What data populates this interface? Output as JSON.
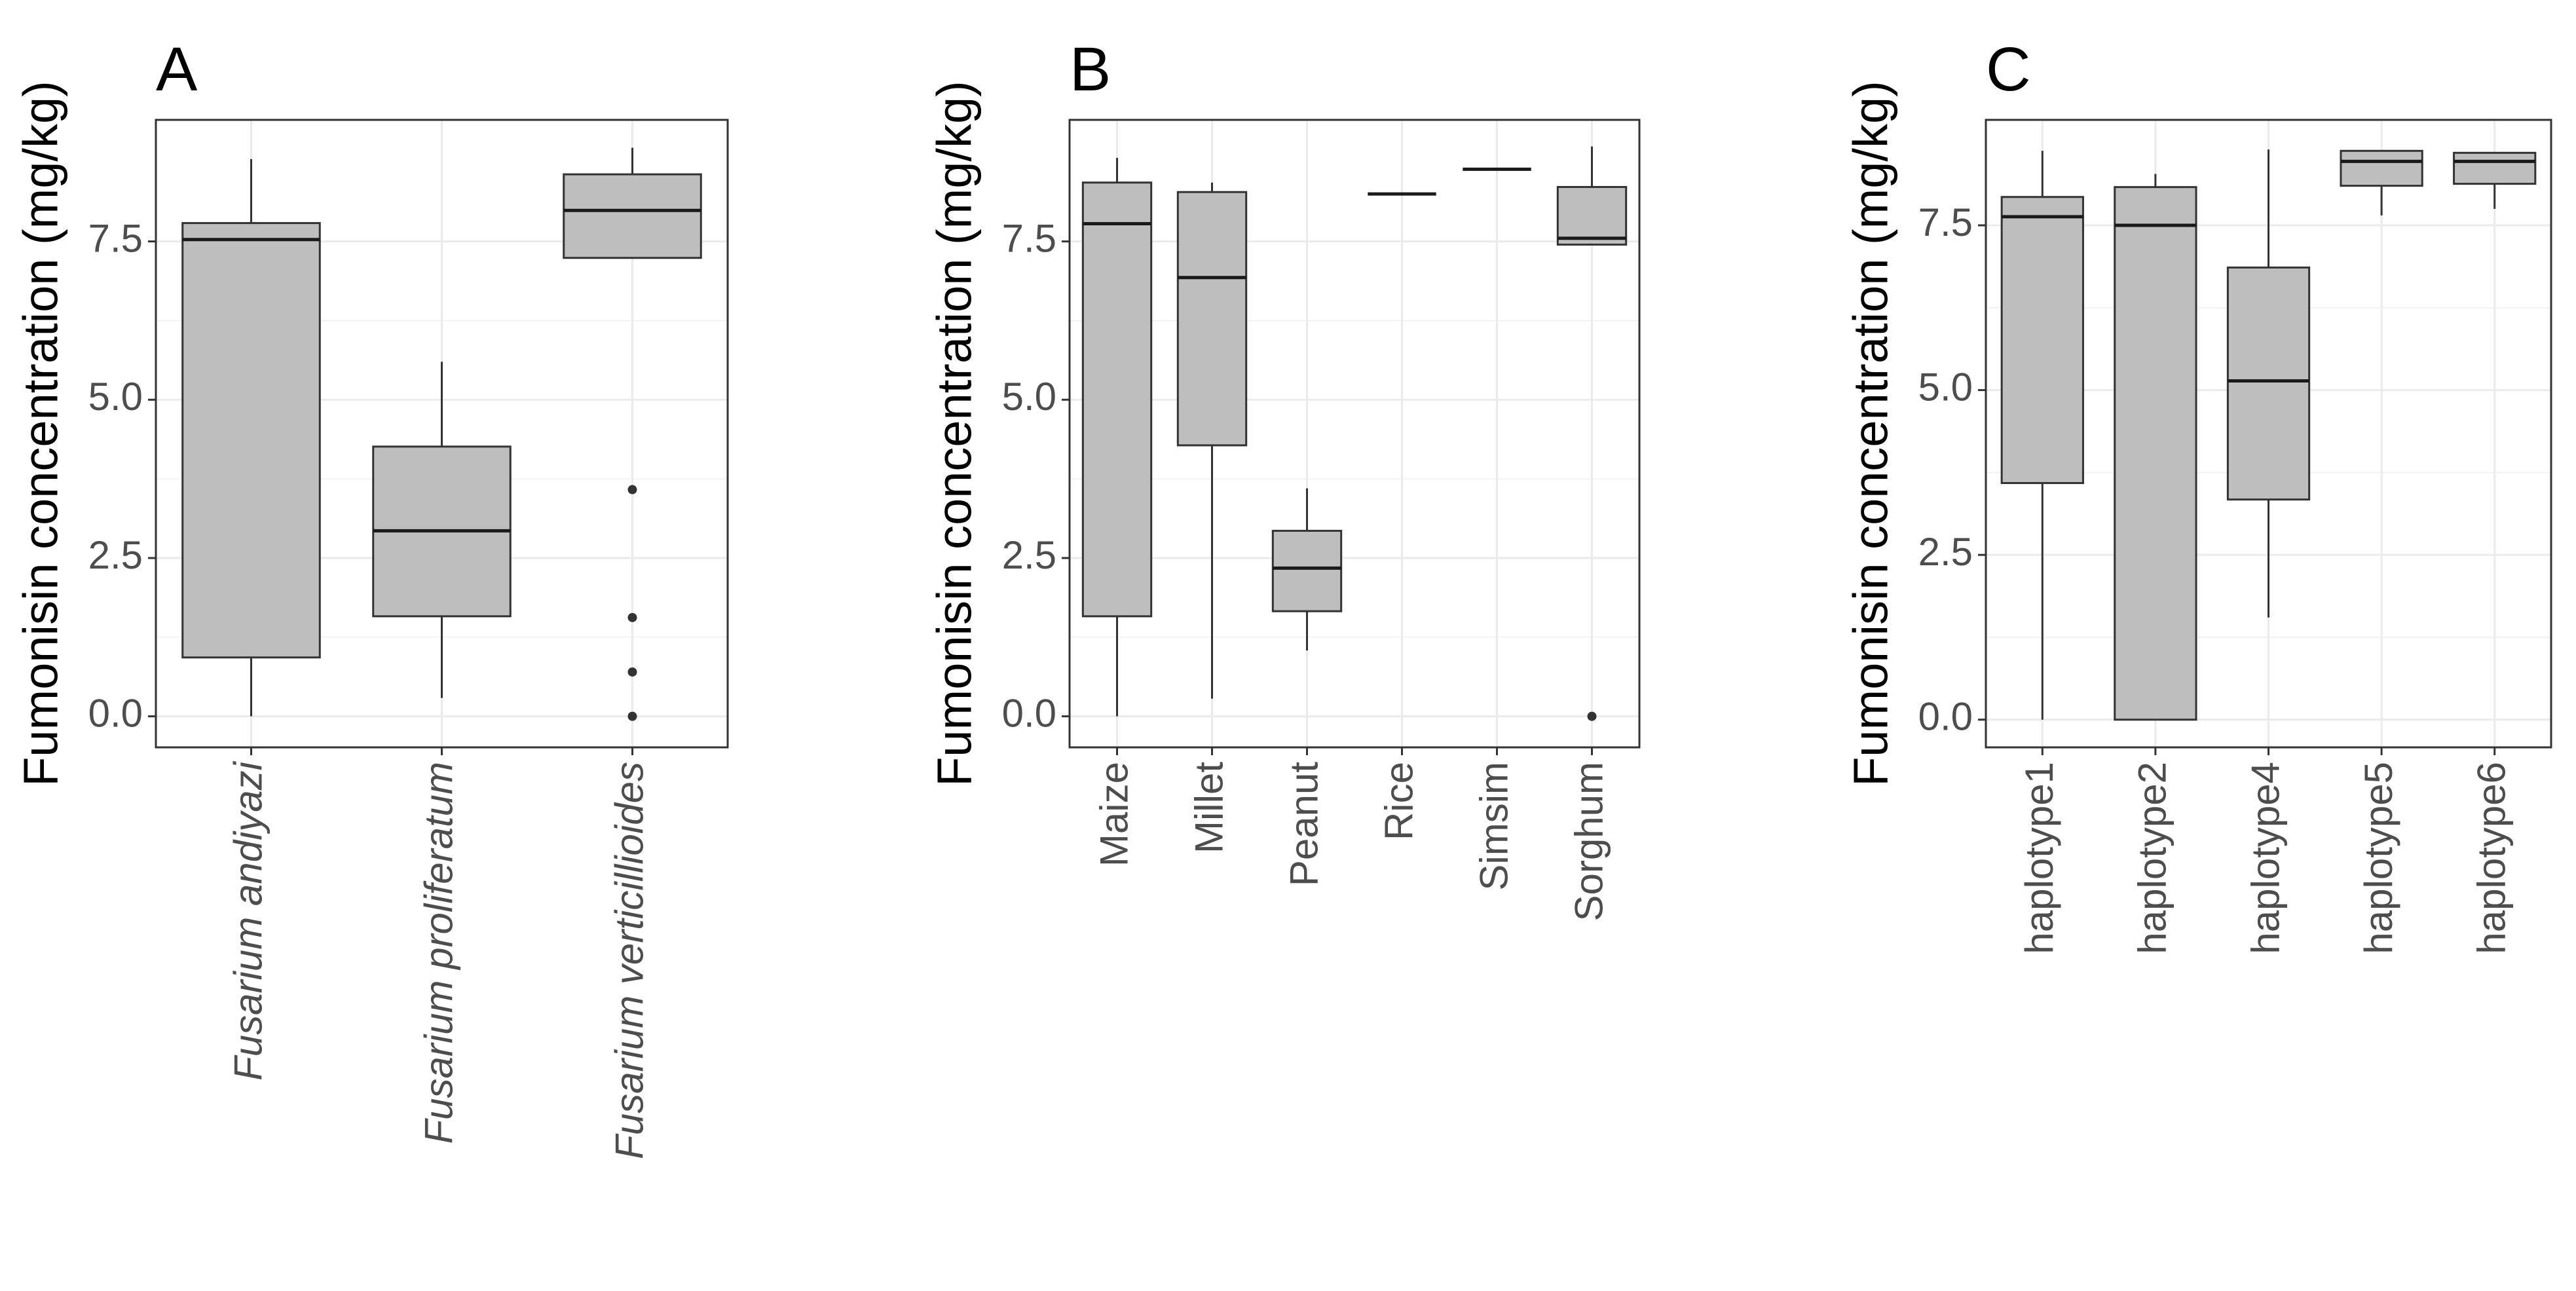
{
  "chart_data": [
    {
      "type": "box",
      "title": "A",
      "ylabel": "Fumonisin concentration (mg/kg)",
      "italic_categories": true,
      "categories": [
        "Fusarium andiyazi",
        "Fusarium proliferatum",
        "Fusarium verticillioides"
      ],
      "boxes": [
        {
          "min": 0,
          "q1": 0.93,
          "median": 7.53,
          "q3": 7.79,
          "max": 8.8,
          "outliers": []
        },
        {
          "min": 0.29,
          "q1": 1.58,
          "median": 2.93,
          "q3": 4.26,
          "max": 5.6,
          "outliers": []
        },
        {
          "min": 7.24,
          "q1": 7.24,
          "median": 7.99,
          "q3": 8.56,
          "max": 8.98,
          "outliers": [
            3.58,
            1.56,
            0.7,
            0
          ]
        }
      ],
      "color": "#bebebe",
      "grid": true,
      "ylim": [
        -0.49,
        9.42
      ],
      "yticks": [
        {
          "value": 0,
          "label": "0.0"
        },
        2.5,
        {
          "value": 5,
          "label": "5.0"
        },
        7.5
      ]
    },
    {
      "type": "box",
      "title": "B",
      "ylabel": "Fumonisin concentration (mg/kg)",
      "italic_categories": false,
      "categories": [
        "Maize",
        "Millet",
        "Peanut",
        "Rice",
        "Simsim",
        "Sorghum"
      ],
      "boxes": [
        {
          "min": 0,
          "q1": 1.58,
          "median": 7.78,
          "q3": 8.43,
          "max": 8.82,
          "outliers": []
        },
        {
          "min": 0.28,
          "q1": 4.28,
          "median": 6.93,
          "q3": 8.28,
          "max": 8.43,
          "outliers": []
        },
        {
          "min": 1.04,
          "q1": 1.66,
          "median": 2.34,
          "q3": 2.93,
          "max": 3.6,
          "outliers": []
        },
        {
          "min": 8.25,
          "q1": 8.25,
          "median": 8.25,
          "q3": 8.25,
          "max": 8.25,
          "outliers": []
        },
        {
          "min": 8.64,
          "q1": 8.64,
          "median": 8.64,
          "q3": 8.64,
          "max": 8.64,
          "outliers": []
        },
        {
          "min": 7.45,
          "q1": 7.45,
          "median": 7.55,
          "q3": 8.36,
          "max": 9.0,
          "outliers": [
            0
          ]
        }
      ],
      "color": "#bebebe",
      "grid": true,
      "ylim": [
        -0.49,
        9.42
      ],
      "yticks": [
        {
          "value": 0,
          "label": "0.0"
        },
        2.5,
        {
          "value": 5,
          "label": "5.0"
        },
        7.5
      ]
    },
    {
      "type": "box",
      "title": "C",
      "ylabel": "Fumonisin concentration (mg/kg)",
      "italic_categories": false,
      "categories": [
        "haplotype1",
        "haplotype2",
        "haplotype4",
        "haplotype5",
        "haplotype6"
      ],
      "boxes": [
        {
          "min": 0,
          "q1": 3.59,
          "median": 7.63,
          "q3": 7.93,
          "max": 8.63,
          "outliers": []
        },
        {
          "min": 0,
          "q1": 0,
          "median": 7.5,
          "q3": 8.08,
          "max": 8.28,
          "outliers": []
        },
        {
          "min": 1.55,
          "q1": 3.34,
          "median": 5.14,
          "q3": 6.86,
          "max": 8.65,
          "outliers": []
        },
        {
          "min": 7.65,
          "q1": 8.1,
          "median": 8.47,
          "q3": 8.63,
          "max": 8.63,
          "outliers": []
        },
        {
          "min": 7.75,
          "q1": 8.13,
          "median": 8.47,
          "q3": 8.6,
          "max": 8.6,
          "outliers": []
        }
      ],
      "color": "#bebebe",
      "grid": true,
      "ylim": [
        -0.42,
        9.1
      ],
      "yticks": [
        {
          "value": 0,
          "label": "0.0"
        },
        2.5,
        {
          "value": 5,
          "label": "5.0"
        },
        7.5
      ]
    }
  ]
}
